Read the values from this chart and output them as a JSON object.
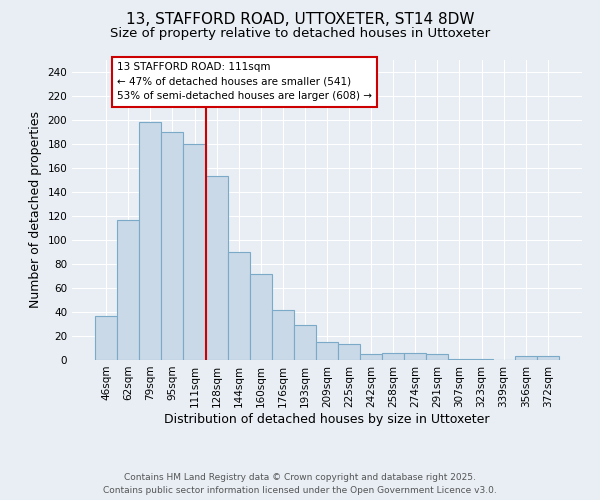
{
  "title": "13, STAFFORD ROAD, UTTOXETER, ST14 8DW",
  "subtitle": "Size of property relative to detached houses in Uttoxeter",
  "xlabel": "Distribution of detached houses by size in Uttoxeter",
  "ylabel": "Number of detached properties",
  "categories": [
    "46sqm",
    "62sqm",
    "79sqm",
    "95sqm",
    "111sqm",
    "128sqm",
    "144sqm",
    "160sqm",
    "176sqm",
    "193sqm",
    "209sqm",
    "225sqm",
    "242sqm",
    "258sqm",
    "274sqm",
    "291sqm",
    "307sqm",
    "323sqm",
    "339sqm",
    "356sqm",
    "372sqm"
  ],
  "values": [
    37,
    117,
    198,
    190,
    180,
    153,
    90,
    72,
    42,
    29,
    15,
    13,
    5,
    6,
    6,
    5,
    1,
    1,
    0,
    3,
    3
  ],
  "bar_color": "#c9d9e8",
  "bar_edge_color": "#7aaac8",
  "bar_edge_width": 0.8,
  "vline_x_index": 4,
  "vline_color": "#cc0000",
  "annotation_text": "13 STAFFORD ROAD: 111sqm\n← 47% of detached houses are smaller (541)\n53% of semi-detached houses are larger (608) →",
  "annotation_box_color": "#ffffff",
  "annotation_box_edge": "#cc0000",
  "ylim": [
    0,
    250
  ],
  "yticks": [
    0,
    20,
    40,
    60,
    80,
    100,
    120,
    140,
    160,
    180,
    200,
    220,
    240
  ],
  "background_color": "#e8eef4",
  "plot_bg_color": "#e8eef4",
  "footer_line1": "Contains HM Land Registry data © Crown copyright and database right 2025.",
  "footer_line2": "Contains public sector information licensed under the Open Government Licence v3.0.",
  "title_fontsize": 11,
  "subtitle_fontsize": 9.5,
  "xlabel_fontsize": 9,
  "ylabel_fontsize": 9,
  "tick_fontsize": 7.5,
  "footer_fontsize": 6.5,
  "annotation_fontsize": 7.5
}
